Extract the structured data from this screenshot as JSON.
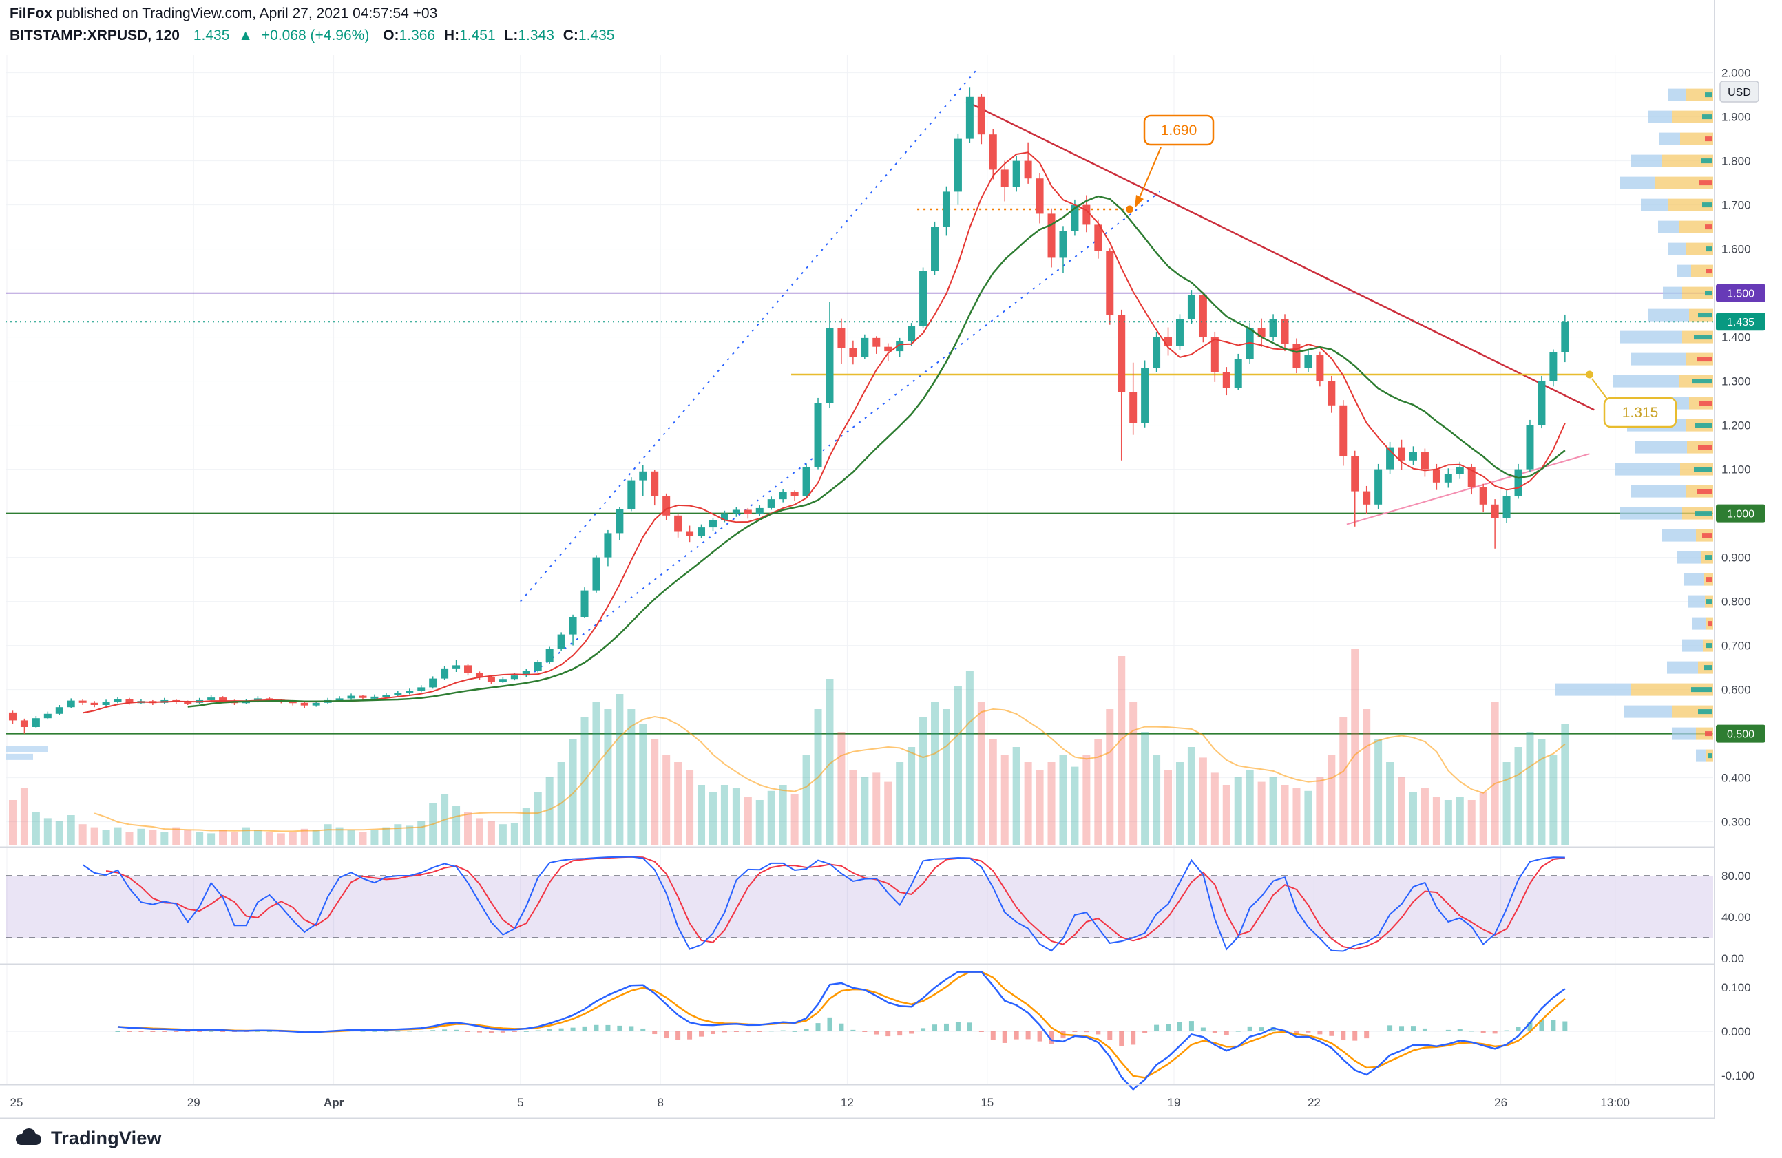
{
  "header": {
    "author": "FilFox",
    "published": " published on TradingView.com, April 27, 2021 04:57:54 +03",
    "symbol": "BITSTAMP:XRPUSD, 120",
    "last_price": "1.435",
    "change_arrow": "▲",
    "change": "+0.068 (+4.96%)",
    "o_label": "O:",
    "o": "1.366",
    "h_label": "H:",
    "h": "1.451",
    "l_label": "L:",
    "l": "1.343",
    "c_label": "C:",
    "c": "1.435"
  },
  "footer": {
    "brand": "TradingView"
  },
  "chart_data": {
    "type": "candlestick",
    "exchange": "BITSTAMP",
    "symbol": "XRPUSD",
    "interval_minutes": "120",
    "currency": "USD",
    "last": {
      "price": 1.435,
      "change": 0.068,
      "change_pct": 4.96,
      "open": 1.366,
      "high": 1.451,
      "low": 1.343,
      "close": 1.435
    },
    "candle_hours": 6,
    "candles": [
      [
        0.548,
        0.552,
        0.522,
        0.53
      ],
      [
        0.53,
        0.534,
        0.5,
        0.515
      ],
      [
        0.515,
        0.54,
        0.512,
        0.535
      ],
      [
        0.535,
        0.55,
        0.532,
        0.545
      ],
      [
        0.545,
        0.565,
        0.543,
        0.56
      ],
      [
        0.56,
        0.58,
        0.558,
        0.575
      ],
      [
        0.575,
        0.578,
        0.565,
        0.57
      ],
      [
        0.57,
        0.574,
        0.56,
        0.565
      ],
      [
        0.565,
        0.577,
        0.562,
        0.572
      ],
      [
        0.572,
        0.583,
        0.569,
        0.578
      ],
      [
        0.578,
        0.581,
        0.566,
        0.57
      ],
      [
        0.57,
        0.579,
        0.567,
        0.574
      ],
      [
        0.574,
        0.576,
        0.565,
        0.57
      ],
      [
        0.57,
        0.581,
        0.567,
        0.576
      ],
      [
        0.576,
        0.578,
        0.568,
        0.572
      ],
      [
        0.572,
        0.575,
        0.565,
        0.57
      ],
      [
        0.57,
        0.581,
        0.567,
        0.576
      ],
      [
        0.576,
        0.587,
        0.573,
        0.582
      ],
      [
        0.582,
        0.585,
        0.57,
        0.574
      ],
      [
        0.574,
        0.577,
        0.565,
        0.57
      ],
      [
        0.57,
        0.579,
        0.567,
        0.574
      ],
      [
        0.574,
        0.585,
        0.571,
        0.58
      ],
      [
        0.58,
        0.582,
        0.572,
        0.577
      ],
      [
        0.577,
        0.579,
        0.569,
        0.574
      ],
      [
        0.574,
        0.576,
        0.564,
        0.57
      ],
      [
        0.57,
        0.572,
        0.558,
        0.564
      ],
      [
        0.564,
        0.575,
        0.561,
        0.57
      ],
      [
        0.57,
        0.581,
        0.567,
        0.576
      ],
      [
        0.576,
        0.585,
        0.573,
        0.58
      ],
      [
        0.58,
        0.591,
        0.577,
        0.586
      ],
      [
        0.586,
        0.588,
        0.576,
        0.581
      ],
      [
        0.581,
        0.589,
        0.578,
        0.584
      ],
      [
        0.584,
        0.593,
        0.581,
        0.588
      ],
      [
        0.588,
        0.597,
        0.585,
        0.592
      ],
      [
        0.592,
        0.602,
        0.589,
        0.597
      ],
      [
        0.597,
        0.61,
        0.594,
        0.605
      ],
      [
        0.605,
        0.63,
        0.602,
        0.625
      ],
      [
        0.625,
        0.653,
        0.622,
        0.648
      ],
      [
        0.648,
        0.668,
        0.64,
        0.655
      ],
      [
        0.655,
        0.658,
        0.632,
        0.638
      ],
      [
        0.638,
        0.641,
        0.622,
        0.628
      ],
      [
        0.628,
        0.632,
        0.612,
        0.618
      ],
      [
        0.618,
        0.629,
        0.615,
        0.624
      ],
      [
        0.624,
        0.637,
        0.621,
        0.632
      ],
      [
        0.632,
        0.647,
        0.629,
        0.642
      ],
      [
        0.642,
        0.667,
        0.639,
        0.662
      ],
      [
        0.662,
        0.697,
        0.659,
        0.692
      ],
      [
        0.692,
        0.73,
        0.688,
        0.725
      ],
      [
        0.725,
        0.77,
        0.7,
        0.765
      ],
      [
        0.765,
        0.832,
        0.762,
        0.825
      ],
      [
        0.825,
        0.905,
        0.82,
        0.9
      ],
      [
        0.9,
        0.962,
        0.88,
        0.955
      ],
      [
        0.955,
        1.015,
        0.94,
        1.01
      ],
      [
        1.01,
        1.082,
        1.005,
        1.075
      ],
      [
        1.075,
        1.11,
        1.04,
        1.095
      ],
      [
        1.095,
        1.098,
        1.018,
        1.04
      ],
      [
        1.04,
        1.045,
        0.985,
        0.995
      ],
      [
        0.995,
        1.0,
        0.945,
        0.958
      ],
      [
        0.958,
        0.972,
        0.935,
        0.948
      ],
      [
        0.948,
        0.975,
        0.944,
        0.968
      ],
      [
        0.968,
        0.99,
        0.96,
        0.984
      ],
      [
        0.984,
        1.006,
        0.98,
        1.0
      ],
      [
        1.0,
        1.014,
        0.992,
        1.008
      ],
      [
        1.008,
        1.012,
        0.988,
        0.998
      ],
      [
        0.998,
        1.018,
        0.994,
        1.012
      ],
      [
        1.012,
        1.038,
        1.008,
        1.032
      ],
      [
        1.032,
        1.054,
        1.025,
        1.048
      ],
      [
        1.048,
        1.052,
        1.028,
        1.04
      ],
      [
        1.04,
        1.112,
        1.036,
        1.105
      ],
      [
        1.105,
        1.262,
        1.1,
        1.25
      ],
      [
        1.25,
        1.48,
        1.24,
        1.42
      ],
      [
        1.42,
        1.442,
        1.34,
        1.375
      ],
      [
        1.375,
        1.392,
        1.338,
        1.355
      ],
      [
        1.355,
        1.406,
        1.35,
        1.398
      ],
      [
        1.398,
        1.402,
        1.362,
        1.378
      ],
      [
        1.378,
        1.386,
        1.346,
        1.368
      ],
      [
        1.368,
        1.398,
        1.355,
        1.39
      ],
      [
        1.39,
        1.432,
        1.38,
        1.425
      ],
      [
        1.425,
        1.558,
        1.42,
        1.55
      ],
      [
        1.55,
        1.662,
        1.54,
        1.65
      ],
      [
        1.65,
        1.742,
        1.63,
        1.73
      ],
      [
        1.73,
        1.862,
        1.7,
        1.85
      ],
      [
        1.85,
        1.966,
        1.84,
        1.945
      ],
      [
        1.945,
        1.952,
        1.838,
        1.86
      ],
      [
        1.86,
        1.872,
        1.758,
        1.78
      ],
      [
        1.78,
        1.8,
        1.708,
        1.74
      ],
      [
        1.74,
        1.812,
        1.73,
        1.8
      ],
      [
        1.8,
        1.842,
        1.748,
        1.76
      ],
      [
        1.76,
        1.772,
        1.658,
        1.68
      ],
      [
        1.68,
        1.692,
        1.558,
        1.58
      ],
      [
        1.58,
        1.652,
        1.545,
        1.64
      ],
      [
        1.64,
        1.712,
        1.63,
        1.7
      ],
      [
        1.7,
        1.722,
        1.638,
        1.655
      ],
      [
        1.655,
        1.667,
        1.578,
        1.595
      ],
      [
        1.595,
        1.602,
        1.428,
        1.45
      ],
      [
        1.45,
        1.462,
        1.12,
        1.275
      ],
      [
        1.275,
        1.342,
        1.178,
        1.205
      ],
      [
        1.205,
        1.347,
        1.195,
        1.33
      ],
      [
        1.33,
        1.412,
        1.32,
        1.4
      ],
      [
        1.4,
        1.422,
        1.358,
        1.38
      ],
      [
        1.38,
        1.452,
        1.37,
        1.44
      ],
      [
        1.44,
        1.507,
        1.43,
        1.495
      ],
      [
        1.495,
        1.502,
        1.388,
        1.4
      ],
      [
        1.4,
        1.412,
        1.298,
        1.32
      ],
      [
        1.32,
        1.332,
        1.268,
        1.285
      ],
      [
        1.285,
        1.362,
        1.28,
        1.35
      ],
      [
        1.35,
        1.432,
        1.34,
        1.42
      ],
      [
        1.42,
        1.442,
        1.378,
        1.4
      ],
      [
        1.4,
        1.452,
        1.39,
        1.44
      ],
      [
        1.44,
        1.452,
        1.368,
        1.385
      ],
      [
        1.385,
        1.397,
        1.318,
        1.33
      ],
      [
        1.33,
        1.372,
        1.32,
        1.36
      ],
      [
        1.36,
        1.367,
        1.288,
        1.3
      ],
      [
        1.3,
        1.312,
        1.228,
        1.245
      ],
      [
        1.245,
        1.257,
        1.108,
        1.13
      ],
      [
        1.13,
        1.142,
        0.97,
        1.05
      ],
      [
        1.05,
        1.062,
        0.998,
        1.02
      ],
      [
        1.02,
        1.112,
        1.01,
        1.1
      ],
      [
        1.1,
        1.162,
        1.09,
        1.15
      ],
      [
        1.15,
        1.167,
        1.098,
        1.12
      ],
      [
        1.12,
        1.152,
        1.11,
        1.14
      ],
      [
        1.14,
        1.147,
        1.083,
        1.1
      ],
      [
        1.1,
        1.112,
        1.053,
        1.07
      ],
      [
        1.07,
        1.102,
        1.058,
        1.09
      ],
      [
        1.09,
        1.117,
        1.078,
        1.105
      ],
      [
        1.105,
        1.112,
        1.043,
        1.06
      ],
      [
        1.06,
        1.067,
        1.003,
        1.02
      ],
      [
        1.02,
        1.032,
        0.92,
        0.99
      ],
      [
        0.99,
        1.052,
        0.978,
        1.04
      ],
      [
        1.04,
        1.112,
        1.033,
        1.1
      ],
      [
        1.1,
        1.212,
        1.093,
        1.2
      ],
      [
        1.2,
        1.312,
        1.193,
        1.3
      ],
      [
        1.3,
        1.372,
        1.288,
        1.366
      ],
      [
        1.366,
        1.451,
        1.343,
        1.435
      ]
    ],
    "volume": [
      30,
      38,
      22,
      18,
      16,
      20,
      14,
      12,
      10,
      12,
      9,
      11,
      10,
      9,
      12,
      10,
      9,
      8,
      10,
      9,
      12,
      10,
      9,
      8,
      9,
      11,
      10,
      14,
      12,
      10,
      9,
      10,
      12,
      14,
      13,
      16,
      28,
      34,
      26,
      22,
      18,
      16,
      14,
      15,
      25,
      35,
      45,
      55,
      70,
      85,
      95,
      90,
      100,
      90,
      80,
      70,
      60,
      55,
      50,
      40,
      35,
      40,
      38,
      32,
      30,
      36,
      40,
      34,
      60,
      90,
      110,
      75,
      50,
      45,
      48,
      42,
      55,
      65,
      85,
      95,
      90,
      105,
      115,
      95,
      70,
      60,
      65,
      55,
      50,
      55,
      60,
      52,
      60,
      70,
      90,
      125,
      95,
      75,
      60,
      50,
      55,
      65,
      58,
      48,
      40,
      45,
      50,
      42,
      45,
      40,
      38,
      36,
      45,
      60,
      85,
      130,
      90,
      70,
      55,
      45,
      35,
      38,
      32,
      30,
      32,
      30,
      35,
      95,
      55,
      65,
      75,
      70,
      60,
      80
    ],
    "axes": {
      "price_ticks": [
        "2.000",
        "1.900",
        "1.800",
        "1.700",
        "1.600",
        "1.500",
        "1.400",
        "1.300",
        "1.200",
        "1.100",
        "1.000",
        "0.900",
        "0.800",
        "0.700",
        "0.600",
        "0.500",
        "0.400",
        "0.300"
      ],
      "time_ticks": [
        {
          "label": "25",
          "day": 0
        },
        {
          "label": "29",
          "day": 4
        },
        {
          "label": "Apr",
          "day": 7
        },
        {
          "label": "5",
          "day": 11
        },
        {
          "label": "8",
          "day": 14
        },
        {
          "label": "12",
          "day": 18
        },
        {
          "label": "15",
          "day": 21
        },
        {
          "label": "19",
          "day": 25
        },
        {
          "label": "22",
          "day": 28
        },
        {
          "label": "26",
          "day": 32
        },
        {
          "label": "13:00",
          "day": 34.45
        }
      ],
      "stoch_ticks": [
        {
          "label": "80.00",
          "value": 80
        },
        {
          "label": "40.00",
          "value": 40
        },
        {
          "label": "0.00",
          "value": 0
        }
      ],
      "macd_ticks": [
        {
          "label": "0.100",
          "value": 0.1
        },
        {
          "label": "0.000",
          "value": 0
        },
        {
          "label": "-0.100",
          "value": -0.1
        }
      ],
      "price_range": [
        0.25,
        2.04
      ]
    },
    "levels": [
      {
        "price": 1.5,
        "color": "#673ab7",
        "badge": "1.500"
      },
      {
        "price": 1.0,
        "color": "#2e7d32",
        "badge": "1.000"
      },
      {
        "price": 0.5,
        "color": "#2e7d32",
        "badge": "0.500"
      }
    ],
    "current_price": {
      "value": 1.435,
      "badge": "1.435",
      "color": "#089981"
    },
    "annotations": [
      {
        "name": "resistance-1690",
        "price": 1.69,
        "label": "1.690",
        "color": "#f57c00",
        "from_day": 19.5,
        "to_day": 24.05,
        "style": "dotted"
      },
      {
        "name": "support-1315",
        "price": 1.315,
        "label": "1.315",
        "color": "#e8bc2e",
        "from_day": 16.8,
        "to_day": 33.9,
        "style": "solid"
      }
    ],
    "trendlines": [
      {
        "name": "descending-resistance",
        "color": "#cc2f3c",
        "from": [
          20.55,
          1.935
        ],
        "to": [
          34.0,
          1.235
        ],
        "width": 2.5,
        "style": "solid"
      },
      {
        "name": "ascending-support-pink",
        "color": "#f48fb1",
        "from": [
          28.7,
          0.975
        ],
        "to": [
          33.9,
          1.135
        ],
        "width": 2,
        "style": "solid"
      },
      {
        "name": "channel-upper",
        "color": "#2962ff",
        "from": [
          11.0,
          0.8
        ],
        "to": [
          20.8,
          2.01
        ],
        "width": 2,
        "style": "dotted"
      },
      {
        "name": "channel-lower",
        "color": "#2962ff",
        "from": [
          11.3,
          0.64
        ],
        "to": [
          24.7,
          1.73
        ],
        "width": 2,
        "style": "dotted"
      }
    ],
    "moving_averages": [
      {
        "name": "slow-ma",
        "period": 16,
        "color": "#2e7d32"
      },
      {
        "name": "fast-ma",
        "period": 7,
        "color": "#e53935"
      }
    ],
    "indicators": {
      "stoch": {
        "k": 6,
        "k_smoothing": 2,
        "d": 3,
        "upper_band": 80,
        "lower_band": 20,
        "k_color": "#2962ff",
        "d_color": "#f23645",
        "band_color": "rgba(126,87,194,0.16)"
      },
      "macd": {
        "fast": 4,
        "slow": 9,
        "signal": 3,
        "macd_color": "#2962ff",
        "signal_color": "#ff9800",
        "hist_up": "#26a69a",
        "hist_down": "#ef5350"
      }
    },
    "volume_profile": {
      "rows": [
        [
          1.95,
          25,
          40,
          10,
          "g"
        ],
        [
          1.9,
          35,
          60,
          14,
          "g"
        ],
        [
          1.85,
          30,
          48,
          10,
          "r"
        ],
        [
          1.8,
          45,
          75,
          16,
          "g"
        ],
        [
          1.75,
          50,
          85,
          18,
          "r"
        ],
        [
          1.7,
          40,
          65,
          14,
          "g"
        ],
        [
          1.65,
          30,
          50,
          10,
          "r"
        ],
        [
          1.6,
          25,
          40,
          8,
          "g"
        ],
        [
          1.55,
          20,
          32,
          8,
          "r"
        ],
        [
          1.5,
          28,
          45,
          10,
          "g"
        ],
        [
          1.45,
          60,
          35,
          20,
          "g"
        ],
        [
          1.4,
          90,
          45,
          26,
          "g"
        ],
        [
          1.35,
          80,
          40,
          22,
          "r"
        ],
        [
          1.3,
          95,
          50,
          28,
          "g"
        ],
        [
          1.25,
          70,
          35,
          18,
          "r"
        ],
        [
          1.2,
          85,
          40,
          24,
          "g"
        ],
        [
          1.15,
          75,
          38,
          20,
          "r"
        ],
        [
          1.1,
          95,
          48,
          26,
          "g"
        ],
        [
          1.05,
          80,
          40,
          22,
          "r"
        ],
        [
          1.0,
          90,
          45,
          24,
          "g"
        ],
        [
          0.95,
          50,
          25,
          14,
          "r"
        ],
        [
          0.9,
          35,
          18,
          10,
          "g"
        ],
        [
          0.85,
          28,
          14,
          8,
          "r"
        ],
        [
          0.8,
          25,
          12,
          8,
          "g"
        ],
        [
          0.75,
          20,
          10,
          6,
          "r"
        ],
        [
          0.7,
          30,
          15,
          8,
          "g"
        ],
        [
          0.65,
          45,
          22,
          12,
          "g"
        ],
        [
          0.6,
          110,
          120,
          30,
          "g"
        ],
        [
          0.55,
          70,
          60,
          20,
          "g"
        ],
        [
          0.5,
          35,
          25,
          10,
          "r"
        ],
        [
          0.45,
          15,
          10,
          6,
          "g"
        ]
      ],
      "left_rows": [
        [
          0.465,
          62
        ],
        [
          0.448,
          40
        ]
      ]
    },
    "colors": {
      "up": "#26a69a",
      "down": "#ef5350",
      "vol_up": "rgba(38,166,154,0.35)",
      "vol_down": "rgba(239,83,80,0.32)",
      "grid": "#f0f2f6",
      "axis_text": "#40454f",
      "separator": "#d6d9e0"
    }
  }
}
